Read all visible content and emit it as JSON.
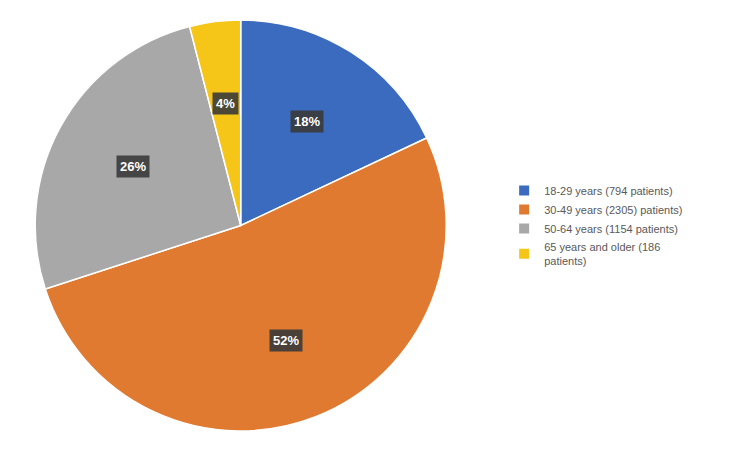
{
  "chart_data": {
    "type": "pie",
    "categories": [
      "18-29 years (794 patients)",
      "30-49 years (2305) patients)",
      "50-64 years (1154 patients)",
      "65 years and older (186\npatients)"
    ],
    "values": [
      18,
      52,
      26,
      4
    ],
    "value_labels": [
      "18%",
      "52%",
      "26%",
      "4%"
    ],
    "colors": [
      "#3A6BBF",
      "#E07A30",
      "#A8A8A8",
      "#F5C518"
    ],
    "data_labels": true,
    "legend": "right"
  }
}
